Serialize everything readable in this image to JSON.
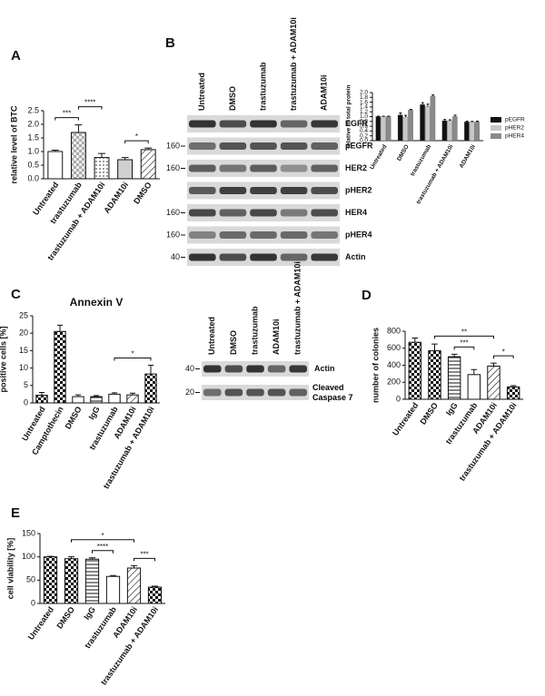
{
  "chart_data": [
    {
      "type": "bar",
      "panel": "A",
      "ylabel": "relative level of BTC",
      "categories": [
        "Untreated",
        "trastuzumab",
        "trastuzumab + ADAM10i",
        "ADAM10i",
        "DMSO"
      ],
      "values": [
        1.0,
        1.7,
        0.78,
        0.7,
        1.07
      ],
      "errors": [
        0.05,
        0.28,
        0.15,
        0.08,
        0.06
      ],
      "patterns": [
        "white",
        "checker-light",
        "dots",
        "gray",
        "diag"
      ],
      "ylim": [
        0,
        2.5
      ],
      "yticks": [
        {
          "value": 0,
          "label": "0.0"
        },
        0.5,
        {
          "value": 1,
          "label": "1.0"
        },
        1.5,
        {
          "value": 2,
          "label": "2.0"
        },
        2.5
      ],
      "annotations": [
        {
          "text": "***",
          "from": "Untreated",
          "to": "trastuzumab"
        },
        {
          "text": "****",
          "from": "trastuzumab",
          "to": "trastuzumab + ADAM10i"
        },
        {
          "text": "*",
          "from": "ADAM10i",
          "to": "DMSO"
        }
      ]
    },
    {
      "type": "grouped_bar",
      "panel": "B",
      "ylabel": "relative to total protein",
      "categories": [
        "Untreated",
        "DMSO",
        "trastuzumab",
        "trastuzumab + ADAM10i",
        "ADAM10i"
      ],
      "series": [
        {
          "name": "pEGFR",
          "color": "#111111",
          "values": [
            1.0,
            1.07,
            1.5,
            0.83,
            0.78
          ],
          "errors": [
            0.02,
            0.08,
            0.08,
            0.05,
            0.03
          ]
        },
        {
          "name": "pHER2",
          "color": "#c8c8c8",
          "values": [
            1.0,
            0.98,
            1.42,
            0.83,
            0.77
          ],
          "errors": [
            0.02,
            0.07,
            0.1,
            0.04,
            0.03
          ]
        },
        {
          "name": "pHER4",
          "color": "#8a8a8a",
          "values": [
            1.0,
            1.27,
            1.85,
            1.0,
            0.78
          ],
          "errors": [
            0.02,
            0.03,
            0.05,
            0.06,
            0.03
          ]
        }
      ],
      "ylim": [
        0,
        2
      ],
      "yticks": [
        {
          "value": 0,
          "label": "0.0"
        },
        0.2,
        0.4,
        0.6,
        0.8,
        {
          "value": 1,
          "label": "1.0"
        },
        1.2,
        1.4,
        1.6,
        1.8,
        {
          "value": 2,
          "label": "2.0"
        }
      ]
    },
    {
      "type": "bar",
      "panel": "C",
      "title": "Annexin V",
      "ylabel": "positive cells [%]",
      "categories": [
        "Untreated",
        "Camptothecin",
        "DMSO",
        "IgG",
        "trastuzumab",
        "ADAM10i",
        "trastuzumab + ADAM10i"
      ],
      "values": [
        2.2,
        20.5,
        1.8,
        1.8,
        2.5,
        2.3,
        8.3
      ],
      "errors": [
        0.8,
        1.8,
        0.5,
        0.3,
        0.4,
        0.5,
        2.5
      ],
      "patterns": [
        "checker",
        "checker",
        "white",
        "hlines",
        "white",
        "diag",
        "checker"
      ],
      "ylim": [
        0,
        25
      ],
      "yticks": [
        0,
        5,
        10,
        15,
        20,
        25
      ],
      "annotations": [
        {
          "text": "*",
          "from": "trastuzumab",
          "to": "trastuzumab + ADAM10i"
        }
      ]
    },
    {
      "type": "bar",
      "panel": "D",
      "ylabel": "number of colonies",
      "categories": [
        "Untreated",
        "DMSO",
        "IgG",
        "trastuzumab",
        "ADAM10i",
        "trastuzumab + ADAM10i"
      ],
      "values": [
        670,
        570,
        500,
        290,
        390,
        145
      ],
      "errors": [
        50,
        80,
        30,
        60,
        35,
        15
      ],
      "patterns": [
        "checker",
        "checker",
        "hlines",
        "white",
        "diag",
        "checker"
      ],
      "ylim": [
        0,
        800
      ],
      "yticks": [
        0,
        200,
        400,
        600,
        800
      ],
      "annotations": [
        {
          "text": "***",
          "from": "IgG",
          "to": "trastuzumab"
        },
        {
          "text": "*",
          "from": "ADAM10i",
          "to": "trastuzumab + ADAM10i"
        },
        {
          "text": "**",
          "from": "DMSO",
          "to": "ADAM10i"
        }
      ]
    },
    {
      "type": "bar",
      "panel": "E",
      "ylabel": "cell viability [%]",
      "categories": [
        "Untreated",
        "DMSO",
        "IgG",
        "trastuzumab",
        "ADAM10i",
        "trastuzumab + ADAM10i"
      ],
      "values": [
        100,
        96,
        95,
        58,
        76,
        35
      ],
      "errors": [
        1,
        4,
        3,
        2,
        5,
        2
      ],
      "patterns": [
        "checker",
        "checker",
        "hlines",
        "white",
        "diag",
        "checker"
      ],
      "ylim": [
        0,
        150
      ],
      "yticks": [
        0,
        50,
        100,
        150
      ],
      "annotations": [
        {
          "text": "****",
          "from": "IgG",
          "to": "trastuzumab"
        },
        {
          "text": "***",
          "from": "ADAM10i",
          "to": "trastuzumab + ADAM10i"
        },
        {
          "text": "*",
          "from": "DMSO",
          "to": "ADAM10i"
        }
      ]
    }
  ],
  "blots": [
    {
      "lanes": [
        "Untreated",
        "DMSO",
        "trastuzumab",
        "trastuzumab + ADAM10i",
        "ADAM10i"
      ],
      "rows": [
        {
          "label": "EGFR"
        },
        {
          "label": "pEGFR",
          "marker": "160"
        },
        {
          "label": "HER2",
          "marker": "160"
        },
        {
          "label": "pHER2"
        },
        {
          "label": "HER4",
          "marker": "160"
        },
        {
          "label": "pHER4",
          "marker": "160"
        },
        {
          "label": "Actin",
          "marker": "40"
        }
      ]
    },
    {
      "lanes": [
        "Untreated",
        "DMSO",
        "trastuzumab",
        "ADAM10i",
        "trastuzumab + ADAM10i"
      ],
      "rows": [
        {
          "label": "Actin",
          "marker": "40"
        },
        {
          "label": "Cleaved Caspase 7",
          "marker": "20"
        }
      ]
    }
  ]
}
